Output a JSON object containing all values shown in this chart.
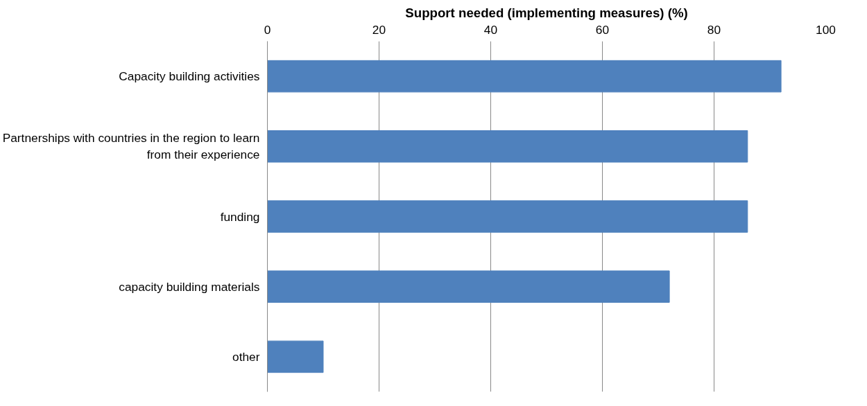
{
  "chart_data": {
    "type": "bar",
    "orientation": "horizontal",
    "title": "Support needed (implementing measures) (%)",
    "categories": [
      "Capacity building activities",
      "Partnerships with countries in the region to learn from their experience",
      "funding",
      "capacity building materials",
      "other"
    ],
    "values": [
      92,
      86,
      86,
      72,
      10
    ],
    "color": "#4f81bd",
    "xlim": [
      0,
      100
    ],
    "xticks": [
      0,
      20,
      40,
      60,
      80,
      100
    ],
    "grid": "x"
  }
}
